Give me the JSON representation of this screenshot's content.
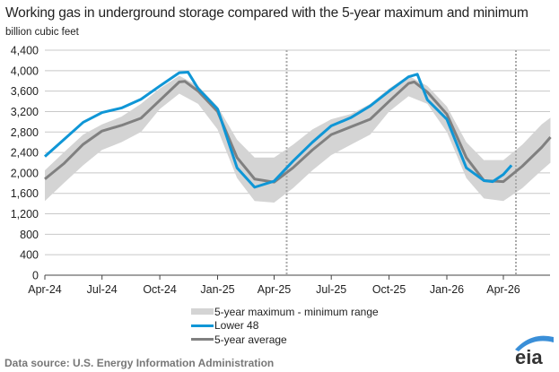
{
  "chart_data": {
    "type": "line",
    "title": "Working gas in underground  storage compared with the 5-year maximum and minimum",
    "ylabel": "billion cubic feet",
    "xlabel": "",
    "ylim": [
      0,
      4400
    ],
    "yticks": [
      "0",
      "400",
      "800",
      "1,200",
      "1,600",
      "2,000",
      "2,400",
      "2,800",
      "3,200",
      "3,600",
      "4,000",
      "4,400"
    ],
    "ytick_values": [
      0,
      400,
      800,
      1200,
      1600,
      2000,
      2400,
      2800,
      3200,
      3600,
      4000,
      4400
    ],
    "xticks": [
      {
        "label": "Apr-24",
        "date": "2024-04-01"
      },
      {
        "label": "Jul-24",
        "date": "2024-07-01"
      },
      {
        "label": "Oct-24",
        "date": "2024-10-01"
      },
      {
        "label": "Jan-25",
        "date": "2025-01-01"
      },
      {
        "label": "Apr-25",
        "date": "2025-04-01"
      },
      {
        "label": "Jul-25",
        "date": "2025-07-01"
      },
      {
        "label": "Oct-25",
        "date": "2025-10-01"
      },
      {
        "label": "Jan-26",
        "date": "2026-01-01"
      },
      {
        "label": "Apr-26",
        "date": "2026-04-01"
      }
    ],
    "xlim": [
      "2024-04-01",
      "2026-06-15"
    ],
    "grid": true,
    "legend_position": "bottom",
    "reference_lines": [
      "2025-04-21",
      "2026-04-21"
    ],
    "band": {
      "name": "5-year maximum - minimum range",
      "color": "#d4d4d4",
      "points": [
        [
          "2024-04-01",
          1450,
          2050
        ],
        [
          "2024-05-01",
          1800,
          2400
        ],
        [
          "2024-06-01",
          2150,
          2750
        ],
        [
          "2024-07-01",
          2450,
          2950
        ],
        [
          "2024-08-01",
          2600,
          3100
        ],
        [
          "2024-09-01",
          2800,
          3350
        ],
        [
          "2024-10-01",
          3250,
          3650
        ],
        [
          "2024-11-01",
          3550,
          3900
        ],
        [
          "2024-12-01",
          3350,
          3700
        ],
        [
          "2025-01-01",
          2850,
          3300
        ],
        [
          "2025-02-01",
          1900,
          2650
        ],
        [
          "2025-03-01",
          1450,
          2300
        ],
        [
          "2025-04-01",
          1420,
          2300
        ],
        [
          "2025-05-01",
          1700,
          2550
        ],
        [
          "2025-06-01",
          2050,
          2850
        ],
        [
          "2025-07-01",
          2350,
          3050
        ],
        [
          "2025-08-01",
          2550,
          3150
        ],
        [
          "2025-09-01",
          2750,
          3350
        ],
        [
          "2025-10-01",
          3200,
          3650
        ],
        [
          "2025-11-01",
          3500,
          3900
        ],
        [
          "2025-12-01",
          3350,
          3700
        ],
        [
          "2026-01-01",
          2800,
          3300
        ],
        [
          "2026-02-01",
          1900,
          2600
        ],
        [
          "2026-03-01",
          1500,
          2250
        ],
        [
          "2026-04-01",
          1450,
          2250
        ],
        [
          "2026-05-01",
          1700,
          2550
        ],
        [
          "2026-06-01",
          2050,
          2950
        ],
        [
          "2026-06-15",
          2200,
          3080
        ]
      ]
    },
    "series": [
      {
        "name": "Lower 48",
        "color": "#0f96d6",
        "points": [
          [
            "2024-04-01",
            2320
          ],
          [
            "2024-05-01",
            2650
          ],
          [
            "2024-06-01",
            2990
          ],
          [
            "2024-07-01",
            3180
          ],
          [
            "2024-08-01",
            3270
          ],
          [
            "2024-09-01",
            3440
          ],
          [
            "2024-10-01",
            3700
          ],
          [
            "2024-11-01",
            3960
          ],
          [
            "2024-11-15",
            3970
          ],
          [
            "2024-12-01",
            3650
          ],
          [
            "2025-01-01",
            3250
          ],
          [
            "2025-02-01",
            2100
          ],
          [
            "2025-03-01",
            1720
          ],
          [
            "2025-04-01",
            1840
          ],
          [
            "2025-05-01",
            2230
          ],
          [
            "2025-06-01",
            2600
          ],
          [
            "2025-07-01",
            2920
          ],
          [
            "2025-08-01",
            3080
          ],
          [
            "2025-09-01",
            3310
          ],
          [
            "2025-10-01",
            3600
          ],
          [
            "2025-11-01",
            3880
          ],
          [
            "2025-11-15",
            3930
          ],
          [
            "2025-12-01",
            3430
          ],
          [
            "2026-01-01",
            3050
          ],
          [
            "2026-02-01",
            2100
          ],
          [
            "2026-03-01",
            1850
          ],
          [
            "2026-03-15",
            1830
          ],
          [
            "2026-04-01",
            1970
          ],
          [
            "2026-04-14",
            2150
          ]
        ]
      },
      {
        "name": "5-year average",
        "color": "#808080",
        "points": [
          [
            "2024-04-01",
            1880
          ],
          [
            "2024-05-01",
            2180
          ],
          [
            "2024-06-01",
            2560
          ],
          [
            "2024-07-01",
            2820
          ],
          [
            "2024-08-01",
            2930
          ],
          [
            "2024-09-01",
            3070
          ],
          [
            "2024-10-01",
            3420
          ],
          [
            "2024-11-01",
            3780
          ],
          [
            "2024-11-10",
            3790
          ],
          [
            "2024-12-01",
            3600
          ],
          [
            "2025-01-01",
            3200
          ],
          [
            "2025-02-01",
            2300
          ],
          [
            "2025-03-01",
            1880
          ],
          [
            "2025-04-01",
            1820
          ],
          [
            "2025-05-01",
            2100
          ],
          [
            "2025-06-01",
            2450
          ],
          [
            "2025-07-01",
            2750
          ],
          [
            "2025-08-01",
            2900
          ],
          [
            "2025-09-01",
            3050
          ],
          [
            "2025-10-01",
            3400
          ],
          [
            "2025-11-01",
            3750
          ],
          [
            "2025-11-10",
            3780
          ],
          [
            "2025-12-01",
            3580
          ],
          [
            "2026-01-01",
            3150
          ],
          [
            "2026-02-01",
            2300
          ],
          [
            "2026-03-01",
            1850
          ],
          [
            "2026-04-01",
            1830
          ],
          [
            "2026-05-01",
            2130
          ],
          [
            "2026-06-01",
            2500
          ],
          [
            "2026-06-15",
            2700
          ]
        ]
      }
    ]
  },
  "legend": {
    "band_label": "5-year maximum - minimum range",
    "lower48_label": "Lower 48",
    "avg_label": "5-year average"
  },
  "footer": {
    "source": "Data source:  U.S. Energy Information Administration"
  },
  "logo": {
    "text": "eia",
    "color": "#3a8fd8"
  }
}
